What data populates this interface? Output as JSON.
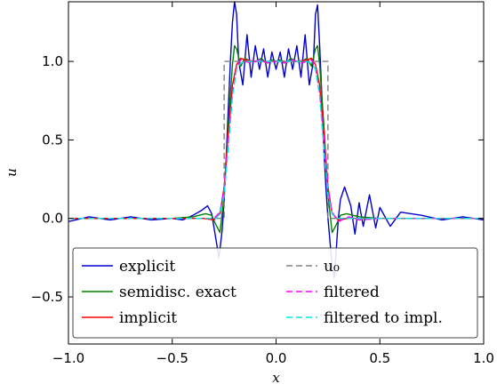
{
  "chart_data": {
    "type": "line",
    "title": "",
    "xlabel": "x",
    "ylabel": "u",
    "xlim": [
      -1.0,
      1.0
    ],
    "ylim": [
      -0.8,
      1.38
    ],
    "xticks": [
      -1.0,
      -0.5,
      0.0,
      0.5,
      1.0
    ],
    "xtick_labels": [
      "−1.0",
      "−0.5",
      "0.0",
      "0.5",
      "1.0"
    ],
    "yticks": [
      -0.5,
      0.0,
      0.5,
      1.0
    ],
    "ytick_labels": [
      "−0.5",
      "0.0",
      "0.5",
      "1.0"
    ],
    "grid": false,
    "legend_position": "lower-center",
    "series": [
      {
        "name": "explicit",
        "color": "#0000cc",
        "style": "solid",
        "x": [
          -1.0,
          -0.9,
          -0.8,
          -0.7,
          -0.6,
          -0.5,
          -0.45,
          -0.4,
          -0.36,
          -0.33,
          -0.31,
          -0.3,
          -0.29,
          -0.275,
          -0.26,
          -0.25,
          -0.24,
          -0.23,
          -0.22,
          -0.21,
          -0.2,
          -0.19,
          -0.18,
          -0.16,
          -0.14,
          -0.12,
          -0.1,
          -0.08,
          -0.06,
          -0.04,
          -0.02,
          0.0,
          0.02,
          0.04,
          0.06,
          0.08,
          0.1,
          0.12,
          0.14,
          0.16,
          0.18,
          0.19,
          0.2,
          0.21,
          0.22,
          0.23,
          0.24,
          0.25,
          0.26,
          0.27,
          0.28,
          0.29,
          0.3,
          0.31,
          0.33,
          0.36,
          0.38,
          0.4,
          0.42,
          0.45,
          0.48,
          0.5,
          0.55,
          0.6,
          0.7,
          0.8,
          0.9,
          1.0
        ],
        "y": [
          -0.02,
          0.01,
          -0.01,
          0.01,
          -0.01,
          0.0,
          -0.01,
          0.02,
          0.05,
          0.08,
          0.03,
          -0.05,
          -0.13,
          -0.25,
          -0.08,
          0.12,
          0.4,
          0.7,
          1.0,
          1.25,
          1.38,
          1.3,
          1.0,
          0.85,
          1.17,
          0.9,
          1.1,
          0.95,
          1.08,
          0.9,
          1.06,
          0.95,
          1.06,
          0.9,
          1.08,
          0.95,
          1.1,
          0.9,
          1.17,
          0.85,
          1.0,
          1.3,
          1.36,
          1.1,
          0.8,
          0.45,
          0.2,
          0.0,
          -0.15,
          -0.3,
          -0.38,
          -0.2,
          0.0,
          0.12,
          0.2,
          0.08,
          -0.1,
          0.1,
          -0.05,
          0.15,
          -0.06,
          0.07,
          -0.05,
          0.04,
          0.02,
          -0.01,
          0.01,
          -0.01
        ]
      },
      {
        "name": "semidisc. exact",
        "color": "#008000",
        "style": "solid",
        "x": [
          -1.0,
          -0.5,
          -0.4,
          -0.34,
          -0.31,
          -0.29,
          -0.27,
          -0.25,
          -0.23,
          -0.21,
          -0.2,
          -0.19,
          -0.17,
          -0.15,
          -0.12,
          -0.1,
          -0.07,
          -0.05,
          -0.02,
          0.0,
          0.02,
          0.05,
          0.07,
          0.1,
          0.12,
          0.15,
          0.17,
          0.19,
          0.2,
          0.21,
          0.23,
          0.25,
          0.27,
          0.29,
          0.31,
          0.34,
          0.4,
          0.5,
          1.0
        ],
        "y": [
          0.0,
          0.0,
          0.01,
          0.03,
          0.02,
          -0.04,
          -0.09,
          0.15,
          0.6,
          0.98,
          1.1,
          1.08,
          0.97,
          1.02,
          1.0,
          1.0,
          1.02,
          0.99,
          1.01,
          1.0,
          1.01,
          0.99,
          1.02,
          1.0,
          1.0,
          1.02,
          0.97,
          1.08,
          1.1,
          0.98,
          0.6,
          0.15,
          -0.09,
          -0.04,
          0.02,
          0.03,
          0.01,
          0.0,
          0.0
        ]
      },
      {
        "name": "implicit",
        "color": "#ff0000",
        "style": "solid",
        "x": [
          -1.0,
          -0.5,
          -0.35,
          -0.3,
          -0.27,
          -0.25,
          -0.23,
          -0.21,
          -0.19,
          -0.17,
          -0.15,
          -0.1,
          0.0,
          0.1,
          0.15,
          0.17,
          0.19,
          0.21,
          0.23,
          0.25,
          0.27,
          0.3,
          0.35,
          0.5,
          1.0
        ],
        "y": [
          0.0,
          0.0,
          0.0,
          -0.01,
          0.03,
          0.2,
          0.55,
          0.85,
          0.98,
          1.02,
          1.01,
          1.0,
          1.0,
          1.0,
          1.01,
          1.02,
          0.98,
          0.85,
          0.55,
          0.2,
          0.03,
          -0.01,
          0.0,
          0.0,
          0.0
        ]
      },
      {
        "name": "u₀",
        "color": "#808080",
        "style": "dashed",
        "x": [
          -1.0,
          -0.25,
          -0.25,
          0.25,
          0.25,
          1.0
        ],
        "y": [
          0.0,
          0.0,
          1.0,
          1.0,
          0.0,
          0.0
        ]
      },
      {
        "name": "filtered",
        "color": "#ff00ff",
        "style": "dashed",
        "x": [
          -1.0,
          -0.5,
          -0.3,
          -0.27,
          -0.25,
          -0.23,
          -0.21,
          -0.19,
          -0.17,
          -0.15,
          -0.12,
          -0.08,
          -0.04,
          0.0,
          0.04,
          0.08,
          0.12,
          0.15,
          0.17,
          0.19,
          0.21,
          0.23,
          0.25,
          0.27,
          0.3,
          0.35,
          0.4,
          0.5,
          1.0
        ],
        "y": [
          0.0,
          0.0,
          0.0,
          0.04,
          0.2,
          0.5,
          0.8,
          0.96,
          1.01,
          1.0,
          0.99,
          1.01,
          0.99,
          1.0,
          0.99,
          1.01,
          0.99,
          1.0,
          1.01,
          0.96,
          0.8,
          0.5,
          0.2,
          0.04,
          -0.02,
          0.01,
          -0.01,
          0.0,
          0.0
        ]
      },
      {
        "name": "filtered to impl.",
        "color": "#00e5e5",
        "style": "dashed",
        "x": [
          -1.0,
          -0.5,
          -0.33,
          -0.29,
          -0.27,
          -0.25,
          -0.23,
          -0.21,
          -0.19,
          -0.17,
          -0.14,
          -0.08,
          0.0,
          0.08,
          0.14,
          0.17,
          0.19,
          0.21,
          0.23,
          0.25,
          0.27,
          0.29,
          0.33,
          0.5,
          1.0
        ],
        "y": [
          0.0,
          0.0,
          0.0,
          0.0,
          0.03,
          0.15,
          0.45,
          0.78,
          0.95,
          0.99,
          1.0,
          1.0,
          1.0,
          1.0,
          1.0,
          0.99,
          0.95,
          0.78,
          0.45,
          0.15,
          0.03,
          0.0,
          0.0,
          0.0,
          0.0
        ]
      }
    ]
  }
}
